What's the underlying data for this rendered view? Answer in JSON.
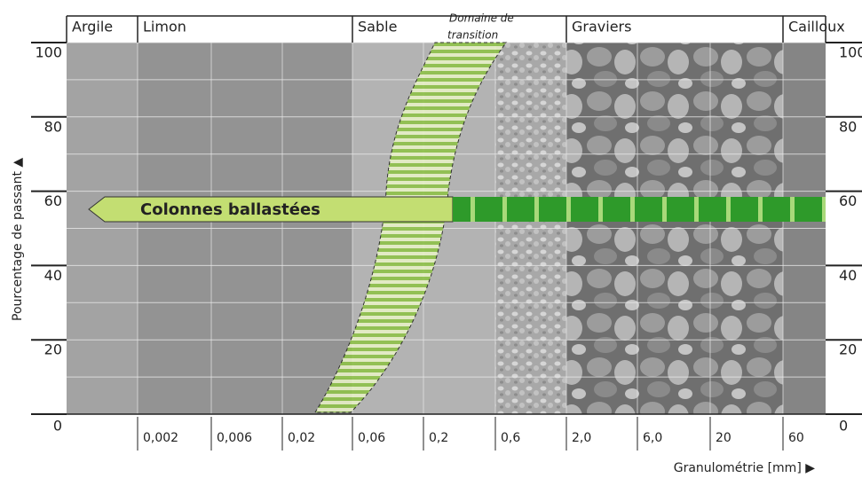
{
  "zones": [
    "Argile",
    "Limon",
    "Sable",
    "Graviers",
    "Cailloux"
  ],
  "transition_label": [
    "Domaine de",
    "transition"
  ],
  "y_axis": {
    "title": "Pourcentage de passant ▲",
    "ticks": [
      0,
      20,
      40,
      60,
      80,
      100
    ]
  },
  "x_axis": {
    "title": "Granulométrie [mm] ▶",
    "ticks": [
      "0,002",
      "0,006",
      "0,02",
      "0,06",
      "0,2",
      "0,6",
      "2,0",
      "6,0",
      "20",
      "60"
    ]
  },
  "arrow_label": "Colonnes ballastées"
}
